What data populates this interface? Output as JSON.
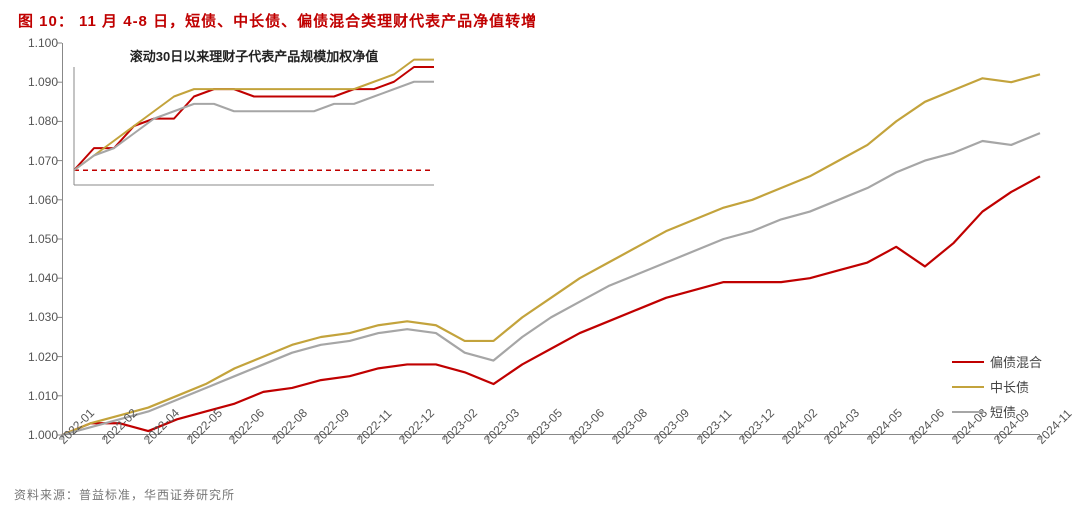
{
  "figure": {
    "number_label": "图 10：",
    "title_text": "11 月 4-8 日，短债、中长债、偏债混合类理财代表产品净值转增"
  },
  "main_chart": {
    "type": "line",
    "background_color": "#ffffff",
    "axis_color": "#888888",
    "tick_font_size": 12,
    "tick_font_color": "#555555",
    "line_width": 2.2,
    "ylim": [
      1.0,
      1.1
    ],
    "ytick_step": 0.01,
    "yticks": [
      "1.000",
      "1.010",
      "1.020",
      "1.030",
      "1.040",
      "1.050",
      "1.060",
      "1.070",
      "1.080",
      "1.090",
      "1.100"
    ],
    "xticks": [
      "2022-01",
      "2022-02",
      "2022-04",
      "2022-05",
      "2022-06",
      "2022-08",
      "2022-09",
      "2022-11",
      "2022-12",
      "2023-02",
      "2023-03",
      "2023-05",
      "2023-06",
      "2023-08",
      "2023-09",
      "2023-11",
      "2023-12",
      "2024-02",
      "2024-03",
      "2024-05",
      "2024-06",
      "2024-08",
      "2024-09",
      "2024-11"
    ],
    "x_index_range": [
      0,
      34
    ],
    "series": [
      {
        "name": "偏债混合",
        "color": "#c00000",
        "values": [
          1.0,
          1.003,
          1.003,
          1.001,
          1.004,
          1.006,
          1.008,
          1.011,
          1.012,
          1.014,
          1.015,
          1.017,
          1.018,
          1.018,
          1.016,
          1.013,
          1.018,
          1.022,
          1.026,
          1.029,
          1.032,
          1.035,
          1.037,
          1.039,
          1.039,
          1.039,
          1.04,
          1.042,
          1.044,
          1.048,
          1.043,
          1.049,
          1.057,
          1.062,
          1.066
        ]
      },
      {
        "name": "中长债",
        "color": "#c3a33c",
        "values": [
          1.0,
          1.003,
          1.005,
          1.007,
          1.01,
          1.013,
          1.017,
          1.02,
          1.023,
          1.025,
          1.026,
          1.028,
          1.029,
          1.028,
          1.024,
          1.024,
          1.03,
          1.035,
          1.04,
          1.044,
          1.048,
          1.052,
          1.055,
          1.058,
          1.06,
          1.063,
          1.066,
          1.07,
          1.074,
          1.08,
          1.085,
          1.088,
          1.091,
          1.09,
          1.092
        ]
      },
      {
        "name": "短债",
        "color": "#a6a6a6",
        "values": [
          1.0,
          1.002,
          1.004,
          1.006,
          1.009,
          1.012,
          1.015,
          1.018,
          1.021,
          1.023,
          1.024,
          1.026,
          1.027,
          1.026,
          1.021,
          1.019,
          1.025,
          1.03,
          1.034,
          1.038,
          1.041,
          1.044,
          1.047,
          1.05,
          1.052,
          1.055,
          1.057,
          1.06,
          1.063,
          1.067,
          1.07,
          1.072,
          1.075,
          1.074,
          1.077
        ]
      }
    ],
    "legend": {
      "position": "bottom-right",
      "items": [
        {
          "label": "偏债混合",
          "color": "#c00000"
        },
        {
          "label": "中长债",
          "color": "#c3a33c"
        },
        {
          "label": "短债",
          "color": "#a6a6a6"
        }
      ]
    }
  },
  "inset_chart": {
    "type": "line",
    "title": "滚动30日以来理财子代表产品规模加权净值",
    "line_width": 2.0,
    "baseline": {
      "color": "#c00000",
      "dash": "5,4",
      "y": 1.0
    },
    "ylim": [
      0.998,
      1.014
    ],
    "series": [
      {
        "name": "偏债混合",
        "color": "#c00000",
        "values": [
          1.0,
          1.003,
          1.003,
          1.006,
          1.007,
          1.007,
          1.01,
          1.011,
          1.011,
          1.01,
          1.01,
          1.01,
          1.01,
          1.01,
          1.011,
          1.011,
          1.012,
          1.014,
          1.014
        ]
      },
      {
        "name": "中长债",
        "color": "#c3a33c",
        "values": [
          1.0,
          1.002,
          1.004,
          1.006,
          1.008,
          1.01,
          1.011,
          1.011,
          1.011,
          1.011,
          1.011,
          1.011,
          1.011,
          1.011,
          1.011,
          1.012,
          1.013,
          1.015,
          1.015
        ]
      },
      {
        "name": "短债",
        "color": "#a6a6a6",
        "values": [
          1.0,
          1.002,
          1.003,
          1.005,
          1.007,
          1.008,
          1.009,
          1.009,
          1.008,
          1.008,
          1.008,
          1.008,
          1.008,
          1.009,
          1.009,
          1.01,
          1.011,
          1.012,
          1.012
        ]
      }
    ]
  },
  "source": "资料来源：普益标准，华西证券研究所"
}
